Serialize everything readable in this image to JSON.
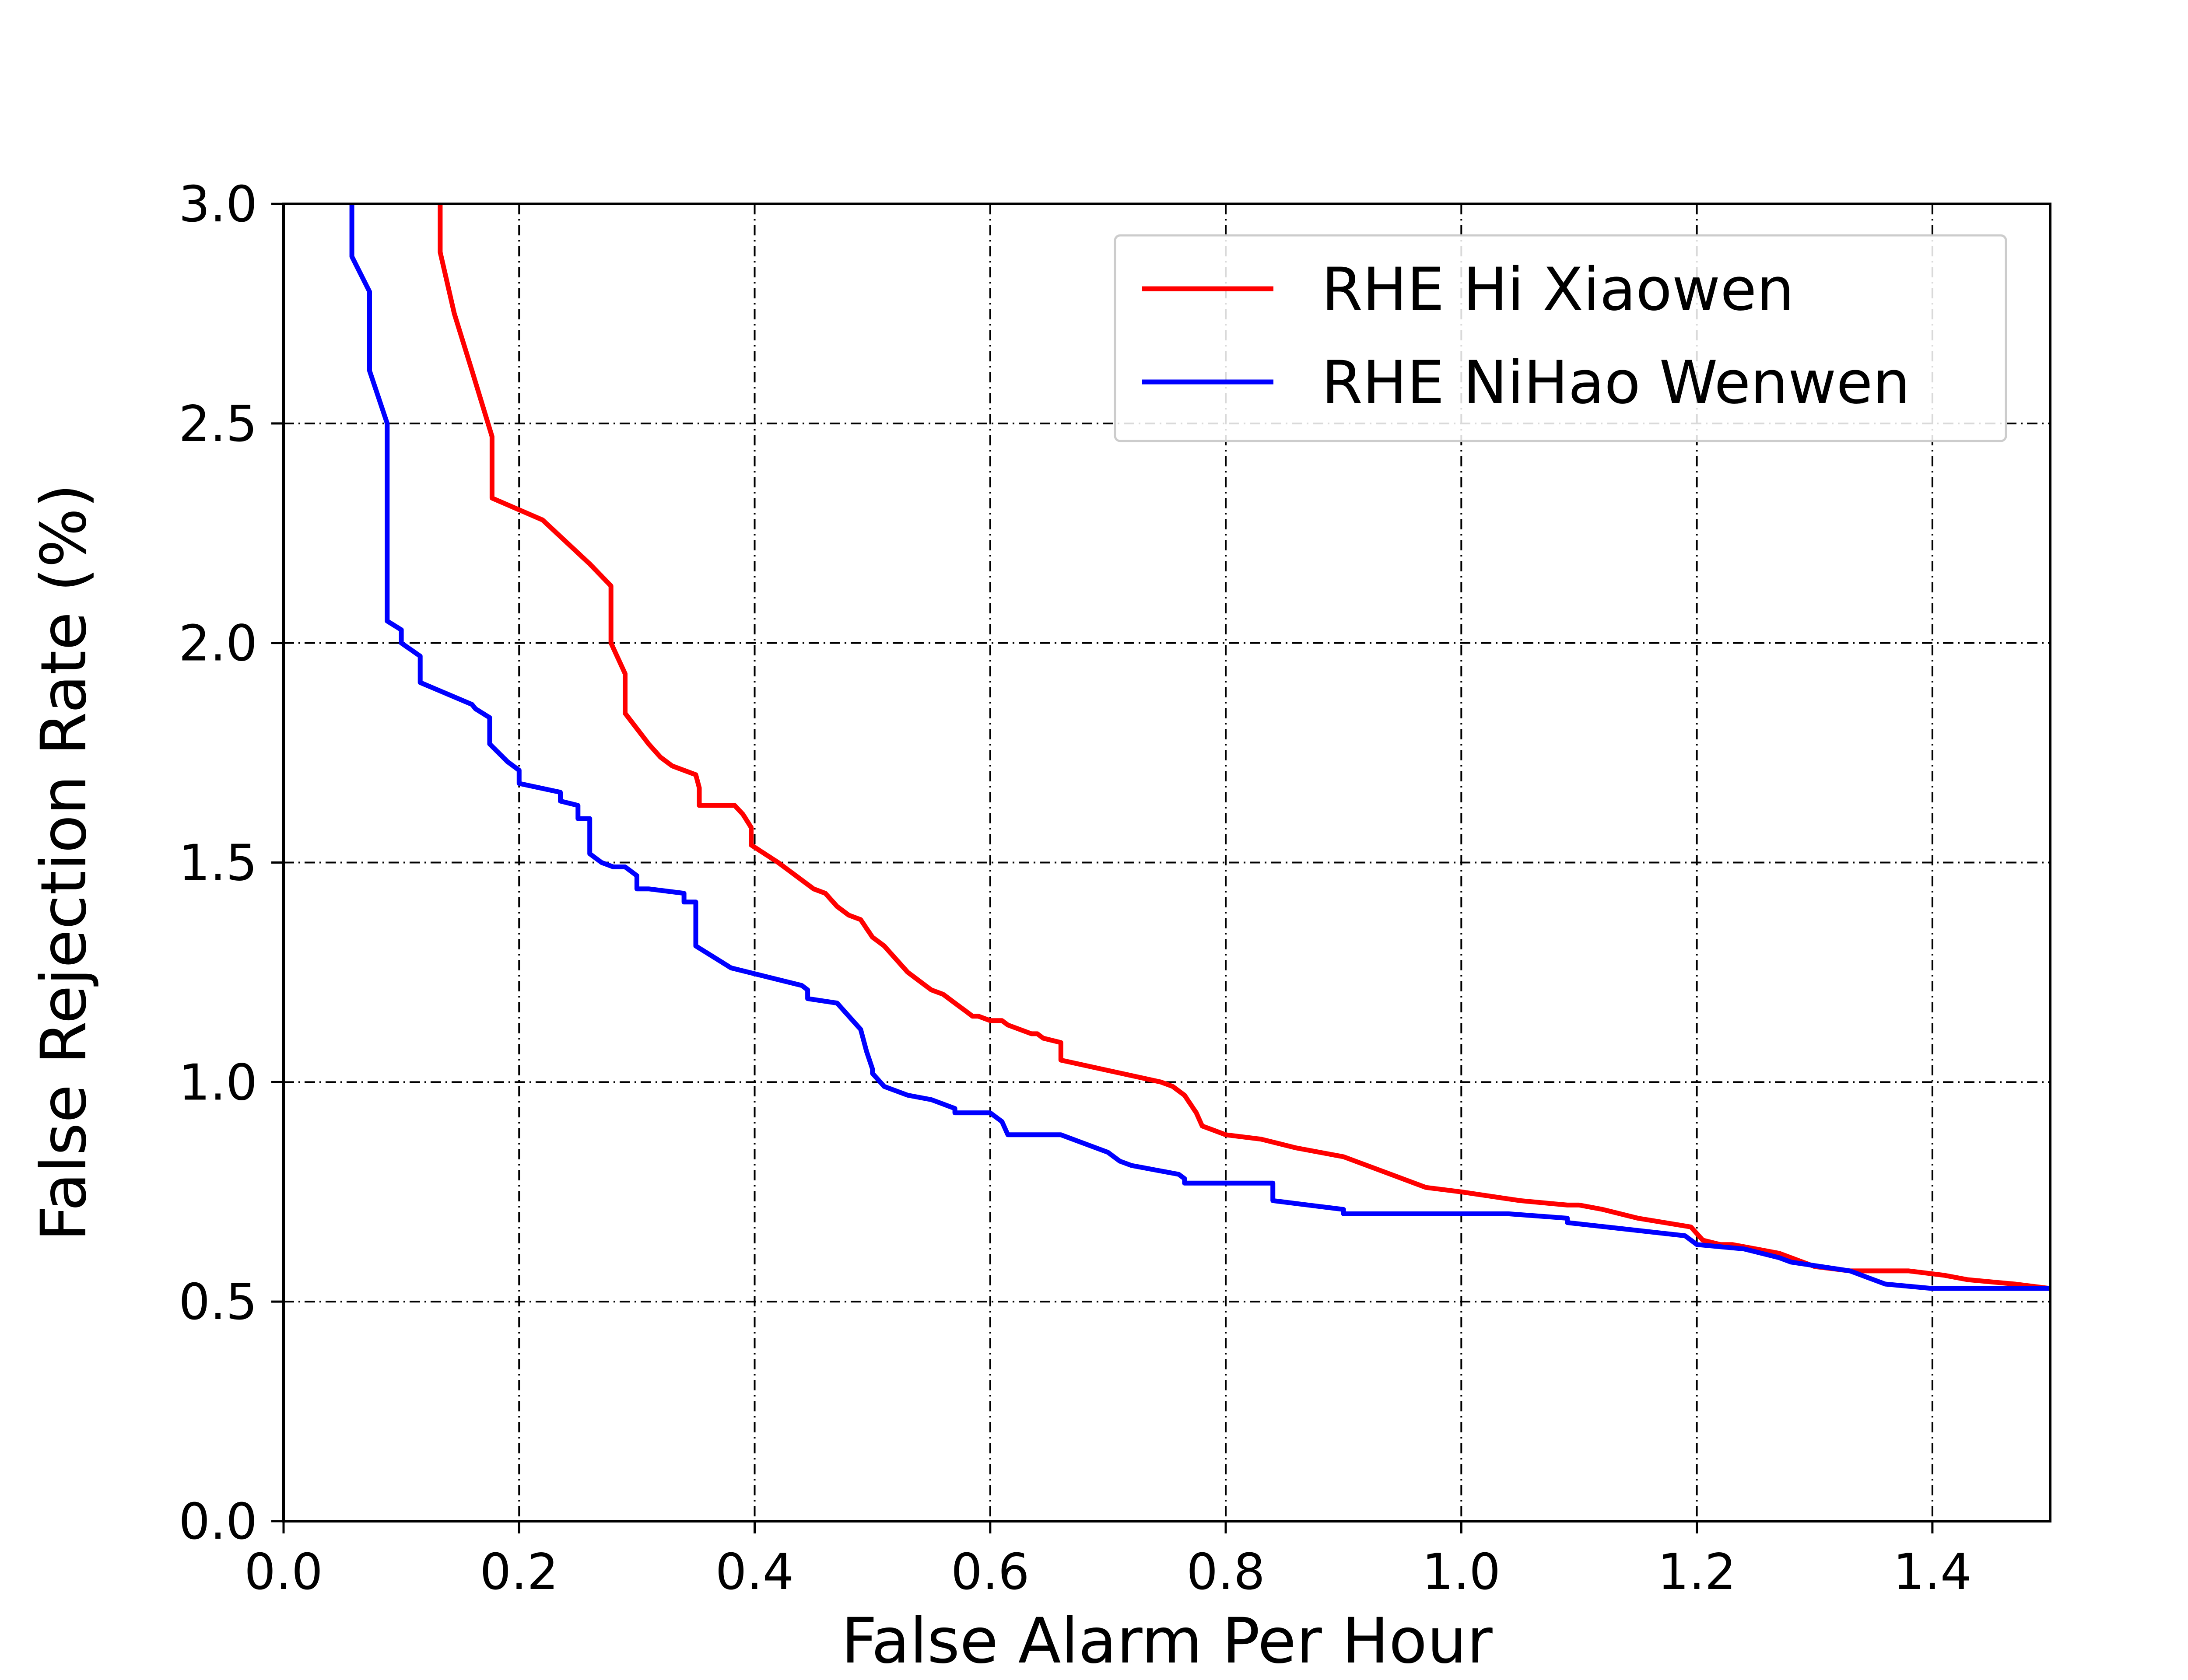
{
  "chart_data": {
    "type": "line",
    "title": "",
    "xlabel": "False Alarm Per Hour",
    "ylabel": "False Rejection Rate (%)",
    "xlim": [
      0.0,
      1.5
    ],
    "ylim": [
      0.0,
      3.0
    ],
    "xticks": [
      "0.0",
      "0.2",
      "0.4",
      "0.6",
      "0.8",
      "1.0",
      "1.2",
      "1.4"
    ],
    "xtick_values": [
      0.0,
      0.2,
      0.4,
      0.6,
      0.8,
      1.0,
      1.2,
      1.4
    ],
    "yticks": [
      "0.0",
      "0.5",
      "1.0",
      "1.5",
      "2.0",
      "2.5",
      "3.0"
    ],
    "ytick_values": [
      0.0,
      0.5,
      1.0,
      1.5,
      2.0,
      2.5,
      3.0
    ],
    "grid": true,
    "legend": "top-right",
    "series": [
      {
        "name": "RHE Hi Xiaowen",
        "color": "#ff0000",
        "x": [
          0.133,
          0.133,
          0.145,
          0.16,
          0.177,
          0.177,
          0.22,
          0.26,
          0.278,
          0.278,
          0.29,
          0.29,
          0.31,
          0.32,
          0.33,
          0.35,
          0.353,
          0.353,
          0.383,
          0.39,
          0.397,
          0.397,
          0.42,
          0.43,
          0.44,
          0.45,
          0.46,
          0.47,
          0.48,
          0.49,
          0.495,
          0.5,
          0.51,
          0.52,
          0.53,
          0.54,
          0.55,
          0.56,
          0.57,
          0.575,
          0.58,
          0.585,
          0.59,
          0.6,
          0.61,
          0.615,
          0.625,
          0.635,
          0.64,
          0.645,
          0.66,
          0.66,
          0.745,
          0.755,
          0.765,
          0.77,
          0.775,
          0.78,
          0.79,
          0.8,
          0.83,
          0.86,
          0.9,
          0.92,
          0.96,
          0.97,
          1.0,
          1.05,
          1.09,
          1.1,
          1.12,
          1.15,
          1.195,
          1.205,
          1.22,
          1.23,
          1.25,
          1.27,
          1.3,
          1.33,
          1.35,
          1.38,
          1.41,
          1.43,
          1.47,
          1.5
        ],
        "y": [
          3.0,
          2.89,
          2.75,
          2.62,
          2.47,
          2.33,
          2.28,
          2.18,
          2.13,
          2.0,
          1.93,
          1.84,
          1.77,
          1.74,
          1.72,
          1.7,
          1.67,
          1.63,
          1.63,
          1.61,
          1.58,
          1.54,
          1.5,
          1.48,
          1.46,
          1.44,
          1.43,
          1.4,
          1.38,
          1.37,
          1.35,
          1.33,
          1.31,
          1.28,
          1.25,
          1.23,
          1.21,
          1.2,
          1.18,
          1.17,
          1.16,
          1.15,
          1.15,
          1.14,
          1.14,
          1.13,
          1.12,
          1.11,
          1.11,
          1.1,
          1.09,
          1.05,
          1.0,
          0.99,
          0.97,
          0.95,
          0.93,
          0.9,
          0.89,
          0.88,
          0.87,
          0.85,
          0.83,
          0.81,
          0.77,
          0.76,
          0.75,
          0.73,
          0.72,
          0.72,
          0.71,
          0.69,
          0.67,
          0.64,
          0.63,
          0.63,
          0.62,
          0.61,
          0.58,
          0.57,
          0.57,
          0.57,
          0.56,
          0.55,
          0.54,
          0.53
        ]
      },
      {
        "name": "RHE NiHao Wenwen",
        "color": "#0000ff",
        "x": [
          0.058,
          0.058,
          0.073,
          0.073,
          0.088,
          0.088,
          0.1,
          0.1,
          0.116,
          0.116,
          0.16,
          0.163,
          0.175,
          0.175,
          0.19,
          0.2,
          0.2,
          0.235,
          0.235,
          0.25,
          0.25,
          0.26,
          0.26,
          0.27,
          0.28,
          0.29,
          0.3,
          0.3,
          0.31,
          0.34,
          0.34,
          0.35,
          0.35,
          0.38,
          0.44,
          0.445,
          0.445,
          0.47,
          0.48,
          0.49,
          0.495,
          0.5,
          0.5,
          0.51,
          0.52,
          0.53,
          0.55,
          0.56,
          0.57,
          0.57,
          0.59,
          0.6,
          0.61,
          0.615,
          0.66,
          0.69,
          0.7,
          0.71,
          0.72,
          0.74,
          0.76,
          0.765,
          0.765,
          0.84,
          0.84,
          0.87,
          0.9,
          0.9,
          1.04,
          1.09,
          1.09,
          1.19,
          1.2,
          1.24,
          1.27,
          1.28,
          1.33,
          1.35,
          1.36,
          1.4,
          1.5
        ],
        "y": [
          3.0,
          2.88,
          2.8,
          2.62,
          2.5,
          2.05,
          2.03,
          2.0,
          1.97,
          1.91,
          1.86,
          1.85,
          1.83,
          1.77,
          1.73,
          1.71,
          1.68,
          1.66,
          1.64,
          1.63,
          1.6,
          1.6,
          1.52,
          1.5,
          1.49,
          1.49,
          1.47,
          1.44,
          1.44,
          1.43,
          1.41,
          1.41,
          1.31,
          1.26,
          1.22,
          1.21,
          1.19,
          1.18,
          1.15,
          1.12,
          1.07,
          1.03,
          1.02,
          0.99,
          0.98,
          0.97,
          0.96,
          0.95,
          0.94,
          0.93,
          0.93,
          0.93,
          0.91,
          0.88,
          0.88,
          0.85,
          0.84,
          0.82,
          0.81,
          0.8,
          0.79,
          0.78,
          0.77,
          0.77,
          0.73,
          0.72,
          0.71,
          0.7,
          0.7,
          0.69,
          0.68,
          0.65,
          0.63,
          0.62,
          0.6,
          0.59,
          0.57,
          0.55,
          0.54,
          0.53,
          0.53
        ]
      }
    ]
  }
}
